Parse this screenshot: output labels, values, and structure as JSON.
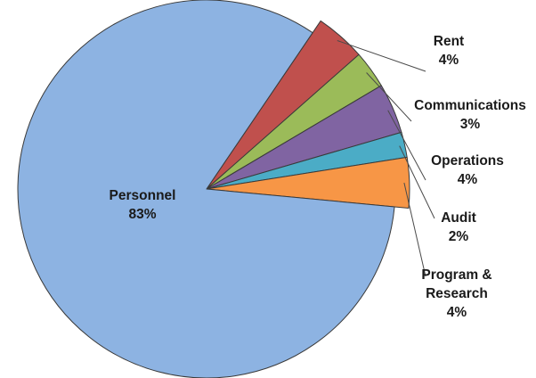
{
  "chart_data": {
    "type": "pie",
    "title": "",
    "start_angle_deg": -55.8,
    "exploded_slices": [
      "Rent",
      "Communications",
      "Operations",
      "Audit",
      "Program & Research"
    ],
    "slices": [
      {
        "name": "Rent",
        "label_lines": [
          "Rent",
          "4%"
        ],
        "value": 4,
        "color": "#c0504d"
      },
      {
        "name": "Communications",
        "label_lines": [
          "Communications",
          "3%"
        ],
        "value": 3,
        "color": "#9bbb59"
      },
      {
        "name": "Operations",
        "label_lines": [
          "Operations",
          "4%"
        ],
        "value": 4,
        "color": "#8064a2"
      },
      {
        "name": "Audit",
        "label_lines": [
          "Audit",
          "2%"
        ],
        "value": 2,
        "color": "#4bacc6"
      },
      {
        "name": "Program & Research",
        "label_lines": [
          "Program &",
          "Research",
          "4%"
        ],
        "value": 4,
        "color": "#f79646"
      },
      {
        "name": "Personnel",
        "label_lines": [
          "Personnel",
          "83%"
        ],
        "value": 83,
        "color": "#8db3e2"
      }
    ]
  }
}
